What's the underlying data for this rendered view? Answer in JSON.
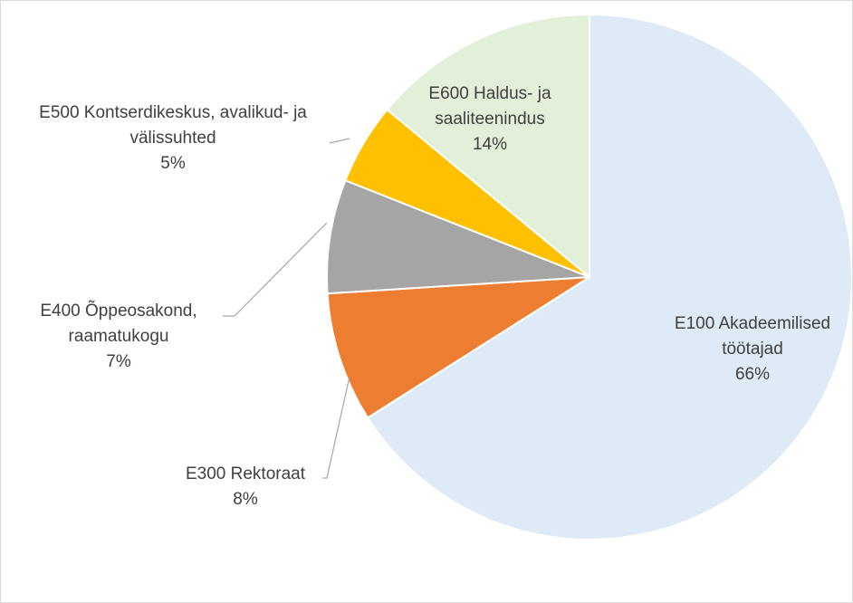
{
  "chart_data": {
    "type": "pie",
    "categories": [
      "E100 Akadeemilised töötajad",
      "E300 Rektoraat",
      "E400 Õppeosakond, raamatukogu",
      "E500 Kontserdikeskus, avalikud- ja välissuhted",
      "E600 Haldus- ja saaliteenindus"
    ],
    "values": [
      66,
      8,
      7,
      5,
      14
    ],
    "value_labels": [
      "66%",
      "8%",
      "7%",
      "5%",
      "14%"
    ],
    "colors": [
      "#deeaf6",
      "#ed7d31",
      "#a5a5a5",
      "#ffc000",
      "#e2efd9"
    ]
  }
}
